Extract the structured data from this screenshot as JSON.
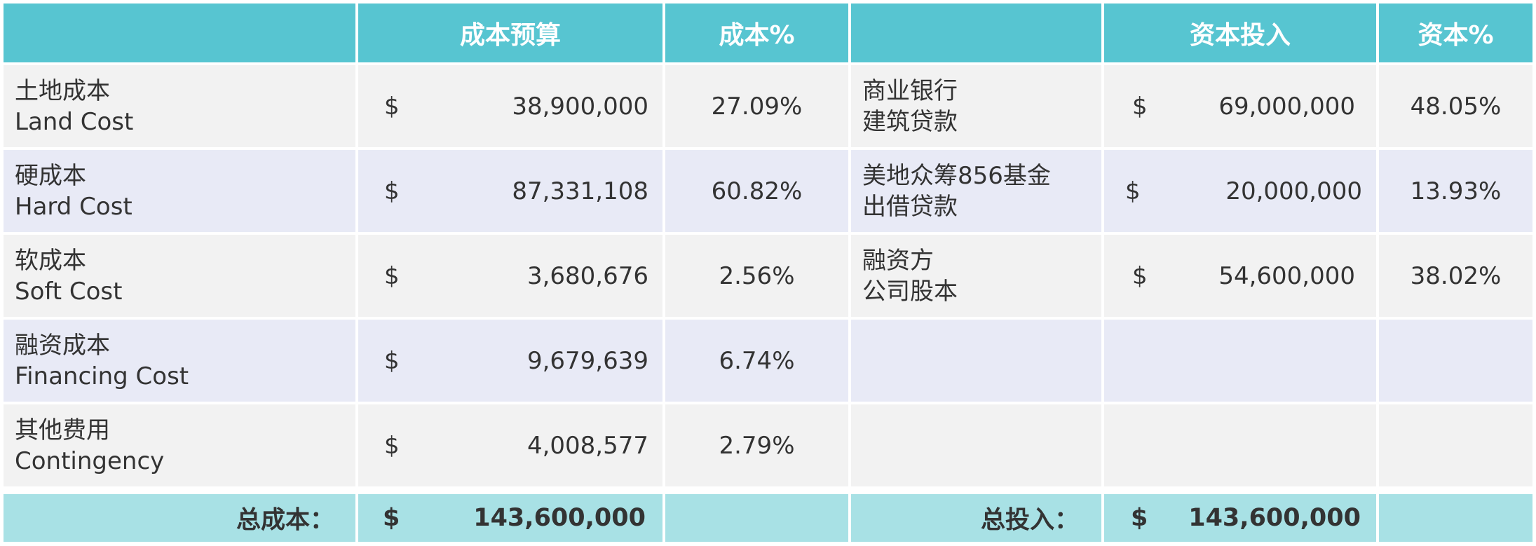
{
  "header": {
    "cost_budget": "成本预算",
    "cost_pct": "成本%",
    "capital_input": "资本投入",
    "capital_pct": "资本%"
  },
  "cost_rows": [
    {
      "label_cn": "土地成本",
      "label_en": "Land Cost",
      "currency": "$",
      "amount": "38,900,000",
      "pct": "27.09%"
    },
    {
      "label_cn": "硬成本",
      "label_en": "Hard Cost",
      "currency": "$",
      "amount": "87,331,108",
      "pct": "60.82%"
    },
    {
      "label_cn": "软成本",
      "label_en": "Soft Cost",
      "currency": "$",
      "amount": "3,680,676",
      "pct": "2.56%"
    },
    {
      "label_cn": "融资成本",
      "label_en": "Financing Cost",
      "currency": "$",
      "amount": "9,679,639",
      "pct": "6.74%"
    },
    {
      "label_cn": "其他费用",
      "label_en": "Contingency",
      "currency": "$",
      "amount": "4,008,577",
      "pct": "2.79%"
    }
  ],
  "capital_rows": [
    {
      "line1": "商业银行",
      "line2": "建筑贷款",
      "currency": "$",
      "amount": "69,000,000",
      "pct": "48.05%"
    },
    {
      "line1": "美地众筹856基金",
      "line2": "出借贷款",
      "currency": "$",
      "amount": "20,000,000",
      "pct": "13.93%"
    },
    {
      "line1": "融资方",
      "line2": "公司股本",
      "currency": "$",
      "amount": "54,600,000",
      "pct": "38.02%"
    }
  ],
  "footer": {
    "total_cost_label": "总成本：",
    "total_cost_currency": "$",
    "total_cost_amount": "143,600,000",
    "total_input_label": "总投入：",
    "total_input_currency": "$",
    "total_input_amount": "143,600,000"
  }
}
